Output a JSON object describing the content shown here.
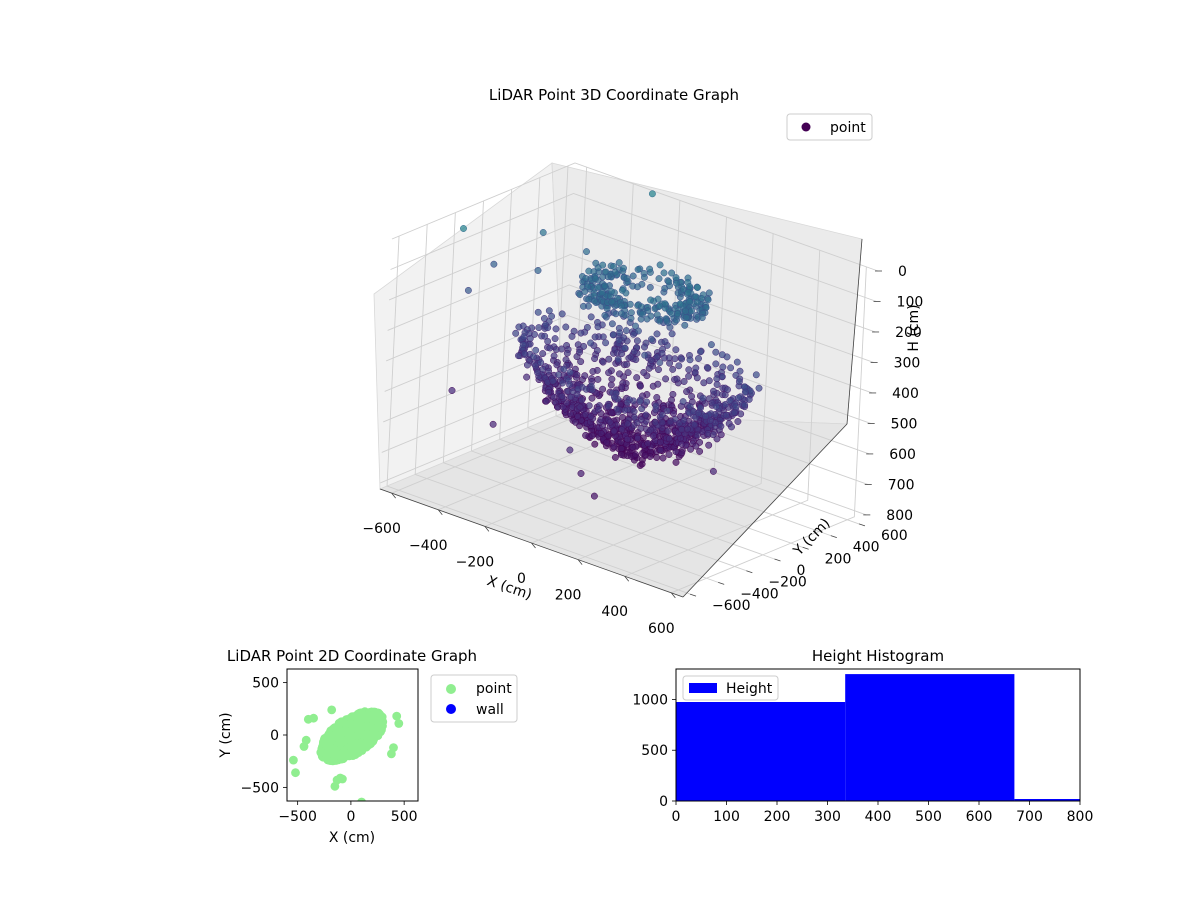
{
  "chart_data": [
    {
      "type": "scatter",
      "projection": "3d",
      "title": "LiDAR Point 3D Coordinate Graph",
      "xlabel": "X (cm)",
      "ylabel": "Y (cm)",
      "zlabel": "H (cm)",
      "x_ticks": [
        "−600",
        "−400",
        "−200",
        "0",
        "200",
        "400",
        "600"
      ],
      "y_ticks": [
        "−600",
        "−400",
        "−200",
        "0",
        "200",
        "400",
        "600"
      ],
      "z_ticks": [
        "0",
        "100",
        "200",
        "300",
        "400",
        "500",
        "600",
        "700",
        "800"
      ],
      "xlim": [
        -650,
        650
      ],
      "ylim": [
        -650,
        650
      ],
      "zlim": [
        0,
        820
      ],
      "z_inverted": true,
      "grid": true,
      "legend": {
        "placement": "top-right",
        "entries": [
          {
            "label": "point",
            "color": "#440154"
          }
        ]
      },
      "colormap": "viridis",
      "sample_points": [
        [
          -560,
          -290,
          10
        ],
        [
          -300,
          620,
          0
        ],
        [
          -520,
          220,
          110
        ],
        [
          -470,
          110,
          200
        ],
        [
          -420,
          40,
          310
        ],
        [
          -400,
          -80,
          400
        ],
        [
          -640,
          80,
          220
        ],
        [
          -620,
          -130,
          260
        ],
        [
          -250,
          -540,
          520
        ],
        [
          120,
          -610,
          490
        ],
        [
          160,
          -590,
          560
        ],
        [
          250,
          -640,
          600
        ],
        [
          520,
          -250,
          520
        ],
        [
          -500,
          -420,
          500
        ],
        [
          -380,
          300,
          150
        ],
        [
          -420,
          120,
          320
        ],
        [
          -150,
          380,
          220
        ],
        [
          100,
          380,
          170
        ]
      ]
    },
    {
      "type": "scatter",
      "title": "LiDAR Point 2D Coordinate Graph",
      "xlabel": "X (cm)",
      "ylabel": "Y (cm)",
      "xlim": [
        -600,
        630
      ],
      "ylim": [
        -630,
        630
      ],
      "x_ticks": [
        "−500",
        "0",
        "500"
      ],
      "y_ticks": [
        "−500",
        "0",
        "500"
      ],
      "legend": {
        "placement": "outside-right",
        "entries": [
          {
            "label": "point",
            "color": "#90ee90"
          },
          {
            "label": "wall",
            "color": "#0000ff"
          }
        ]
      },
      "outliers": [
        [
          -540,
          -240
        ],
        [
          -520,
          -360
        ],
        [
          -400,
          150
        ],
        [
          -350,
          160
        ],
        [
          -180,
          240
        ],
        [
          -130,
          -430
        ],
        [
          -80,
          -420
        ],
        [
          -150,
          -490
        ],
        [
          -100,
          -410
        ],
        [
          100,
          -640
        ],
        [
          380,
          -180
        ],
        [
          450,
          110
        ],
        [
          -440,
          -110
        ],
        [
          -420,
          -50
        ],
        [
          400,
          -120
        ],
        [
          430,
          180
        ]
      ]
    },
    {
      "type": "bar",
      "subtype": "histogram",
      "title": "Height Histogram",
      "bins": [
        {
          "start": 0,
          "end": 335,
          "count": 975
        },
        {
          "start": 335,
          "end": 670,
          "count": 1250
        },
        {
          "start": 670,
          "end": 805,
          "count": 20
        }
      ],
      "xlim": [
        0,
        800
      ],
      "ylim": [
        0,
        1300
      ],
      "x_ticks": [
        "0",
        "100",
        "200",
        "300",
        "400",
        "500",
        "600",
        "700",
        "800"
      ],
      "y_ticks": [
        "0",
        "500",
        "1000"
      ],
      "legend": {
        "placement": "top-left",
        "entries": [
          {
            "label": "Height",
            "color": "#0000ff"
          }
        ]
      },
      "color": "#0000ff"
    }
  ]
}
